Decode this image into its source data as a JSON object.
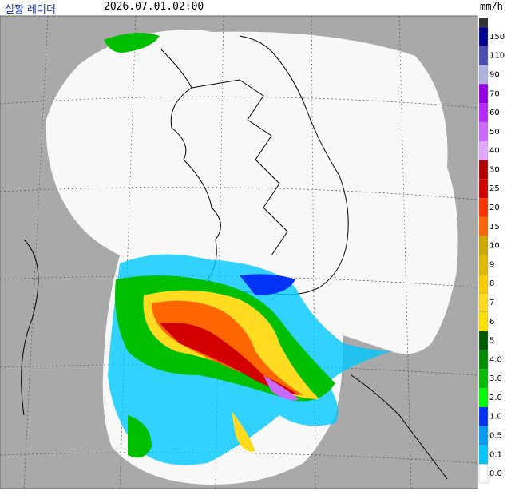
{
  "header": {
    "title": "실황 레이더",
    "time": "2026.07.01.02:00",
    "unit": "mm/h"
  },
  "legend": {
    "top_color": "#333333",
    "items": [
      {
        "label": "150",
        "color": "#000390"
      },
      {
        "label": "110",
        "color": "#4c4eb1"
      },
      {
        "label": "90",
        "color": "#b3b4de"
      },
      {
        "label": "70",
        "color": "#9300e4"
      },
      {
        "label": "60",
        "color": "#b329ff"
      },
      {
        "label": "50",
        "color": "#c969ff"
      },
      {
        "label": "40",
        "color": "#e0a9ff"
      },
      {
        "label": "30",
        "color": "#b40000"
      },
      {
        "label": "25",
        "color": "#d20000"
      },
      {
        "label": "20",
        "color": "#ff3200"
      },
      {
        "label": "15",
        "color": "#ff6600"
      },
      {
        "label": "10",
        "color": "#ccaa00"
      },
      {
        "label": "9",
        "color": "#e0b900"
      },
      {
        "label": "8",
        "color": "#f9cd00"
      },
      {
        "label": "7",
        "color": "#ffdc1f"
      },
      {
        "label": "6",
        "color": "#ffe100"
      },
      {
        "label": "5",
        "color": "#005a00"
      },
      {
        "label": "4.0",
        "color": "#008c00"
      },
      {
        "label": "3.0",
        "color": "#00be00"
      },
      {
        "label": "2.0",
        "color": "#00ff00"
      },
      {
        "label": "1.0",
        "color": "#0033f5"
      },
      {
        "label": "0.5",
        "color": "#009bf5"
      },
      {
        "label": "0.1",
        "color": "#00c8ff"
      },
      {
        "label": "0.0",
        "color": "#ffffff"
      }
    ]
  }
}
